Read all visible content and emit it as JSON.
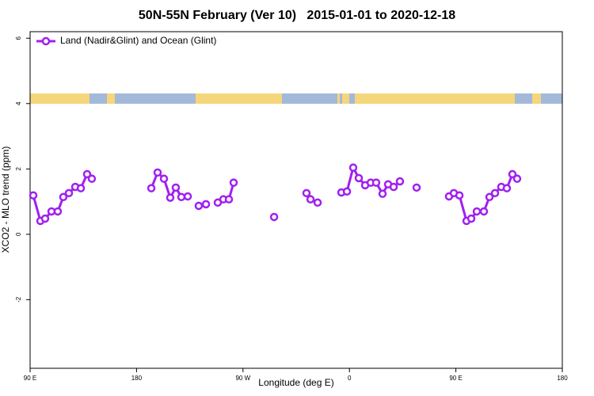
{
  "chart_data": {
    "type": "line",
    "title": "50N-55N February (Ver 10)   2015-01-01 to 2020-12-18",
    "x_label": "Longitude (deg E)",
    "y_label": "XCO2 - MLO trend (ppm)",
    "xlim": [
      90,
      540
    ],
    "ylim": [
      -4.1,
      6.2
    ],
    "xticks": [
      {
        "value": 90,
        "label": "90 E"
      },
      180,
      {
        "value": 270,
        "label": "90 W"
      },
      {
        "value": 360,
        "label": "0"
      },
      {
        "value": 450,
        "label": "90 E"
      },
      {
        "value": 540,
        "label": "180"
      }
    ],
    "yticks": [
      -2,
      0,
      2,
      4,
      6
    ],
    "grid": false,
    "legend": "top-left",
    "x": [
      92.7,
      98.7,
      102.7,
      108.1,
      113.4,
      118.1,
      122.8,
      128.2,
      132.9,
      138.2,
      142.2,
      null,
      192.5,
      197.8,
      203.2,
      208.5,
      213.2,
      217.9,
      223.3,
      null,
      232.6,
      238.7,
      null,
      248.7,
      253.4,
      258.1,
      262.1,
      null,
      296.3,
      null,
      323.7,
      327.1,
      null,
      333.1,
      null,
      353.2,
      357.9,
      363.2,
      367.9,
      373.3,
      378.0,
      382.6,
      388.0,
      392.7,
      397.4,
      402.7,
      null,
      416.8,
      null,
      444.2,
      448.3,
      453.0,
      459.0,
      463.0,
      467.7,
      473.7,
      478.4,
      483.1,
      488.4,
      493.1,
      497.8,
      501.8
    ],
    "series": [
      {
        "name": "Land (Nadir&Glint) and Ocean (Glint)",
        "color": "#a020f0",
        "values": [
          1.19,
          0.41,
          0.48,
          0.7,
          0.7,
          1.14,
          1.26,
          1.45,
          1.41,
          1.84,
          1.7,
          null,
          1.41,
          1.89,
          1.7,
          1.12,
          1.43,
          1.14,
          1.16,
          null,
          0.87,
          0.92,
          null,
          0.97,
          1.07,
          1.07,
          1.58,
          null,
          0.53,
          null,
          1.26,
          1.07,
          null,
          0.97,
          null,
          1.28,
          1.31,
          2.04,
          1.72,
          1.5,
          1.58,
          1.58,
          1.24,
          1.53,
          1.45,
          1.62,
          null,
          1.43,
          null,
          1.16,
          1.26,
          1.19,
          0.41,
          0.48,
          0.7,
          0.7,
          1.14,
          1.26,
          1.45,
          1.41,
          1.84,
          1.7
        ]
      }
    ]
  }
}
